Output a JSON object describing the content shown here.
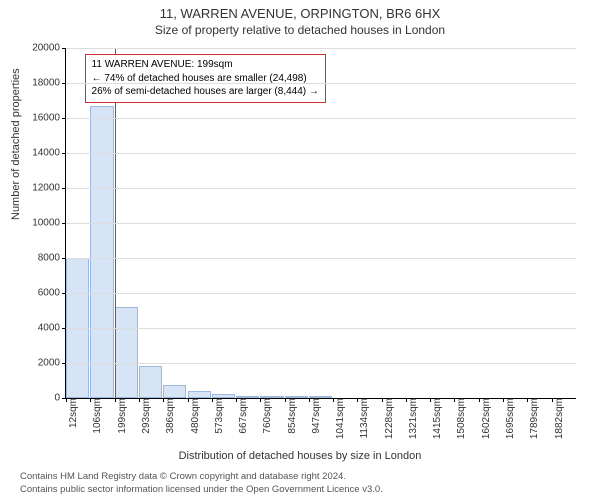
{
  "title": "11, WARREN AVENUE, ORPINGTON, BR6 6HX",
  "subtitle": "Size of property relative to detached houses in London",
  "ylabel": "Number of detached properties",
  "xlabel": "Distribution of detached houses by size in London",
  "chart": {
    "type": "bar",
    "ylim": [
      0,
      20000
    ],
    "ytick_step": 2000,
    "background_color": "#ffffff",
    "grid_color": "#dddddd",
    "bar_fill": "#d6e4f5",
    "bar_stroke": "#9cb8dc",
    "marker_color": "#d02f2f",
    "annotation_border": "#d02f2f",
    "bin_width_sqm": 93.5,
    "bins": [
      {
        "label": "12sqm",
        "start": 12,
        "count": 8000
      },
      {
        "label": "106sqm",
        "start": 106,
        "count": 16700
      },
      {
        "label": "199sqm",
        "start": 199,
        "count": 5200
      },
      {
        "label": "293sqm",
        "start": 293,
        "count": 1850
      },
      {
        "label": "386sqm",
        "start": 386,
        "count": 760
      },
      {
        "label": "480sqm",
        "start": 480,
        "count": 380
      },
      {
        "label": "573sqm",
        "start": 573,
        "count": 220
      },
      {
        "label": "667sqm",
        "start": 667,
        "count": 140
      },
      {
        "label": "760sqm",
        "start": 760,
        "count": 100
      },
      {
        "label": "854sqm",
        "start": 854,
        "count": 70
      },
      {
        "label": "947sqm",
        "start": 947,
        "count": 50
      },
      {
        "label": "1041sqm",
        "start": 1041,
        "count": 0
      },
      {
        "label": "1134sqm",
        "start": 1134,
        "count": 0
      },
      {
        "label": "1228sqm",
        "start": 1228,
        "count": 0
      },
      {
        "label": "1321sqm",
        "start": 1321,
        "count": 0
      },
      {
        "label": "1415sqm",
        "start": 1415,
        "count": 0
      },
      {
        "label": "1508sqm",
        "start": 1508,
        "count": 0
      },
      {
        "label": "1602sqm",
        "start": 1602,
        "count": 0
      },
      {
        "label": "1695sqm",
        "start": 1695,
        "count": 0
      },
      {
        "label": "1789sqm",
        "start": 1789,
        "count": 0
      },
      {
        "label": "1882sqm",
        "start": 1882,
        "count": 0
      }
    ],
    "marker_value_sqm": 199,
    "x_range": [
      12,
      1976
    ]
  },
  "annotation": {
    "line1": "11 WARREN AVENUE: 199sqm",
    "line2": "← 74% of detached houses are smaller (24,498)",
    "line3": "26% of semi-detached houses are larger (8,444) →"
  },
  "footer": {
    "line1": "Contains HM Land Registry data © Crown copyright and database right 2024.",
    "line2": "Contains public sector information licensed under the Open Government Licence v3.0."
  }
}
